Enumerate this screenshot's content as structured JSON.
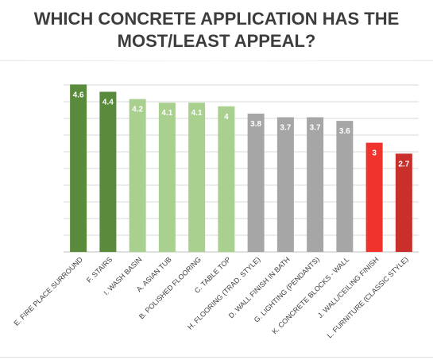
{
  "chart_data": {
    "type": "bar",
    "title_lines": [
      "WHICH CONCRETE APPLICATION HAS THE",
      "MOST/LEAST APPEAL?"
    ],
    "categories": [
      "E. FIRE PLACE SURROUND",
      "F. STAIRS",
      "I. WASH BASIN",
      "A. ASIAN TUB",
      "B. POLISHED FLOORING",
      "C. TABLE TOP",
      "H. FLOORING (TRAD. STYLE)",
      "D. WALL FINISH IN BATH",
      "G. LIGHTING (PENDANTS)",
      "K. CONCRETE BLOCKS - WALL",
      "J. WALL/CEILING FINISH",
      "L. FURNITURE (CLASSIC STYLE)"
    ],
    "values": [
      4.6,
      4.4,
      4.2,
      4.1,
      4.1,
      4.0,
      3.8,
      3.7,
      3.7,
      3.6,
      3.0,
      2.7
    ],
    "labels": [
      "4.6",
      "4.4",
      "4.2",
      "4.1",
      "4.1",
      "4",
      "3.8",
      "3.7",
      "3.7",
      "3.6",
      "3",
      "2.7"
    ],
    "colors": [
      "#5a8a3c",
      "#5a8a3c",
      "#a9d08e",
      "#a9d08e",
      "#a9d08e",
      "#a9d08e",
      "#a6a6a6",
      "#a6a6a6",
      "#a6a6a6",
      "#a6a6a6",
      "#f0332c",
      "#c9302c"
    ],
    "label_color": "#ffffff",
    "gridline_count": 11,
    "grid": true,
    "legend": false
  }
}
